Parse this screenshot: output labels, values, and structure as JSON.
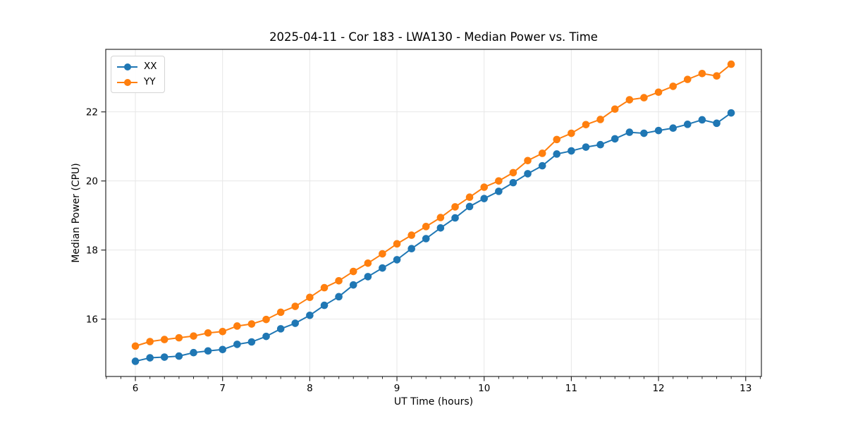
{
  "chart_data": {
    "type": "line",
    "title": "2025-04-11 - Cor 183 - LWA130 - Median Power vs. Time",
    "xlabel": "UT Time (hours)",
    "ylabel": "Median Power (CPU)",
    "xlim": [
      5.66,
      13.18
    ],
    "ylim": [
      14.34,
      23.81
    ],
    "xticks": [
      6,
      7,
      8,
      9,
      10,
      11,
      12,
      13
    ],
    "yticks": [
      16,
      18,
      20,
      22
    ],
    "x_minor_step": 0.16667,
    "grid": true,
    "grid_color": "#e7e7e7",
    "axis_color": "#2a2a2a",
    "legend_position": "upper left",
    "marker": "circle",
    "x": [
      6.0,
      6.167,
      6.333,
      6.5,
      6.667,
      6.833,
      7.0,
      7.167,
      7.333,
      7.5,
      7.667,
      7.833,
      8.0,
      8.167,
      8.333,
      8.5,
      8.667,
      8.833,
      9.0,
      9.167,
      9.333,
      9.5,
      9.667,
      9.833,
      10.0,
      10.167,
      10.333,
      10.5,
      10.667,
      10.833,
      11.0,
      11.167,
      11.333,
      11.5,
      11.667,
      11.833,
      12.0,
      12.167,
      12.333,
      12.5,
      12.667,
      12.833
    ],
    "series": [
      {
        "name": "XX",
        "color": "#1f77b4",
        "values": [
          14.78,
          14.88,
          14.9,
          14.93,
          15.03,
          15.08,
          15.12,
          15.27,
          15.34,
          15.5,
          15.72,
          15.88,
          16.11,
          16.4,
          16.65,
          16.99,
          17.23,
          17.48,
          17.72,
          18.04,
          18.33,
          18.64,
          18.93,
          19.26,
          19.49,
          19.7,
          19.95,
          20.21,
          20.44,
          20.78,
          20.87,
          20.98,
          21.05,
          21.22,
          21.41,
          21.38,
          21.46,
          21.53,
          21.64,
          21.77,
          21.67,
          21.97
        ]
      },
      {
        "name": "YY",
        "color": "#ff7f0e",
        "values": [
          15.22,
          15.35,
          15.41,
          15.46,
          15.51,
          15.6,
          15.64,
          15.8,
          15.86,
          15.99,
          16.2,
          16.37,
          16.63,
          16.91,
          17.11,
          17.38,
          17.62,
          17.89,
          18.18,
          18.43,
          18.68,
          18.94,
          19.25,
          19.53,
          19.82,
          20.0,
          20.24,
          20.59,
          20.8,
          21.2,
          21.38,
          21.63,
          21.78,
          22.08,
          22.35,
          22.41,
          22.57,
          22.74,
          22.94,
          23.11,
          23.04,
          23.38
        ]
      }
    ]
  }
}
